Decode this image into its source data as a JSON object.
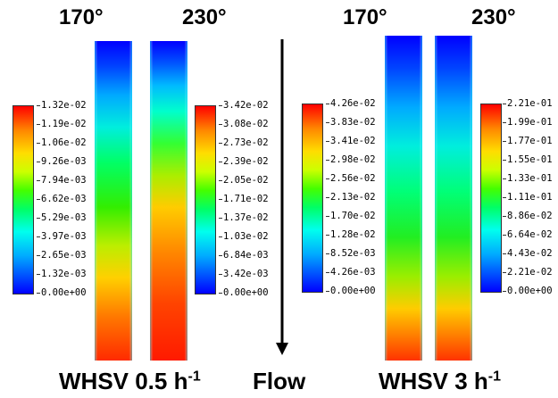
{
  "temperatures": {
    "left_low": "170°",
    "left_high": "230°",
    "right_low": "170°",
    "right_high": "230°"
  },
  "flow_label": "Flow",
  "panels": [
    {
      "label": "WHSV 0.5 h",
      "sup": "-1"
    },
    {
      "label": "WHSV 3 h",
      "sup": "-1"
    }
  ],
  "colorbars": [
    {
      "ticks": [
        "1.32e-02",
        "1.19e-02",
        "1.06e-02",
        "9.26e-03",
        "7.94e-03",
        "6.62e-03",
        "5.29e-03",
        "3.97e-03",
        "2.65e-03",
        "1.32e-03",
        "0.00e+00"
      ]
    },
    {
      "ticks": [
        "3.42e-02",
        "3.08e-02",
        "2.73e-02",
        "2.39e-02",
        "2.05e-02",
        "1.71e-02",
        "1.37e-02",
        "1.03e-02",
        "6.84e-03",
        "3.42e-03",
        "0.00e+00"
      ]
    },
    {
      "ticks": [
        "4.26e-02",
        "3.83e-02",
        "3.41e-02",
        "2.98e-02",
        "2.56e-02",
        "2.13e-02",
        "1.70e-02",
        "1.28e-02",
        "8.52e-03",
        "4.26e-03",
        "0.00e+00"
      ]
    },
    {
      "ticks": [
        "2.21e-01",
        "1.99e-01",
        "1.77e-01",
        "1.55e-01",
        "1.33e-01",
        "1.11e-01",
        "8.86e-02",
        "6.64e-02",
        "4.43e-02",
        "2.21e-02",
        "0.00e+00"
      ]
    }
  ]
}
